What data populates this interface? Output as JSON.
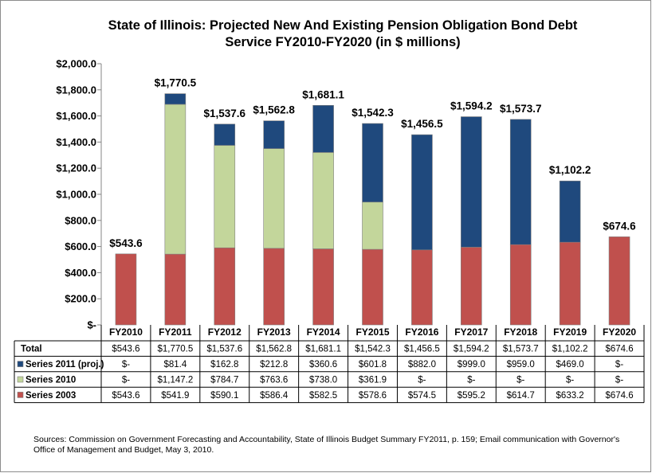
{
  "chart_data": {
    "type": "bar",
    "stacked": true,
    "title": "State of Illinois: Projected New And Existing Pension Obligation Bond Debt Service FY2010-FY2020  (in $ millions)",
    "title_lines": [
      "State of Illinois: Projected New And Existing Pension Obligation Bond Debt",
      "Service FY2010-FY2020  (in $ millions)"
    ],
    "categories": [
      "FY2010",
      "FY2011",
      "FY2012",
      "FY2013",
      "FY2014",
      "FY2015",
      "FY2016",
      "FY2017",
      "FY2018",
      "FY2019",
      "FY2020"
    ],
    "ylim": [
      0,
      2000
    ],
    "yticks": [
      0,
      200,
      400,
      600,
      800,
      1000,
      1200,
      1400,
      1600,
      1800,
      2000
    ],
    "ytick_labels": [
      "$-",
      "$200.0",
      "$400.0",
      "$600.0",
      "$800.0",
      "$1,000.0",
      "$1,200.0",
      "$1,400.0",
      "$1,600.0",
      "$1,800.0",
      "$2,000.0"
    ],
    "grid": false,
    "series": [
      {
        "name": "Series 2003",
        "color": "#c0504d",
        "values": [
          543.6,
          541.9,
          590.1,
          586.4,
          582.5,
          578.6,
          574.5,
          595.2,
          614.7,
          633.2,
          674.6
        ]
      },
      {
        "name": "Series 2010",
        "color": "#c3d69b",
        "values": [
          0,
          1147.2,
          784.7,
          763.6,
          738.0,
          361.9,
          0,
          0,
          0,
          0,
          0
        ]
      },
      {
        "name": "Series 2011 (proj.)",
        "color": "#1f497d",
        "values": [
          0,
          81.4,
          162.8,
          212.8,
          360.6,
          601.8,
          882.0,
          999.0,
          959.0,
          469.0,
          0
        ]
      }
    ],
    "totals": [
      543.6,
      1770.5,
      1537.6,
      1562.8,
      1681.1,
      1542.3,
      1456.5,
      1594.2,
      1573.7,
      1102.2,
      674.6
    ],
    "total_labels": [
      "$543.6",
      "$1,770.5",
      "$1,537.6",
      "$1,562.8",
      "$1,681.1",
      "$1,542.3",
      "$1,456.5",
      "$1,594.2",
      "$1,573.7",
      "$1,102.2",
      "$674.6"
    ],
    "data_table": {
      "rows": [
        {
          "label": "Total",
          "legend_color": null,
          "cells": [
            "$543.6",
            "$1,770.5",
            "$1,537.6",
            "$1,562.8",
            "$1,681.1",
            "$1,542.3",
            "$1,456.5",
            "$1,594.2",
            "$1,573.7",
            "$1,102.2",
            "$674.6"
          ]
        },
        {
          "label": "Series 2011 (proj.)",
          "legend_color": "#1f497d",
          "cells": [
            "$-",
            "$81.4",
            "$162.8",
            "$212.8",
            "$360.6",
            "$601.8",
            "$882.0",
            "$999.0",
            "$959.0",
            "$469.0",
            "$-"
          ]
        },
        {
          "label": "Series 2010",
          "legend_color": "#c3d69b",
          "cells": [
            "$-",
            "$1,147.2",
            "$784.7",
            "$763.6",
            "$738.0",
            "$361.9",
            "$-",
            "$-",
            "$-",
            "$-",
            "$-"
          ]
        },
        {
          "label": "Series 2003",
          "legend_color": "#c0504d",
          "cells": [
            "$543.6",
            "$541.9",
            "$590.1",
            "$586.4",
            "$582.5",
            "$578.6",
            "$574.5",
            "$595.2",
            "$614.7",
            "$633.2",
            "$674.6"
          ]
        }
      ]
    }
  },
  "source_note": "Sources: Commission on Government Forecasting and Accountability, State of Illinois Budget Summary FY2011, p. 159; Email communication with Governor's Office of Management and Budget, May 3, 2010."
}
